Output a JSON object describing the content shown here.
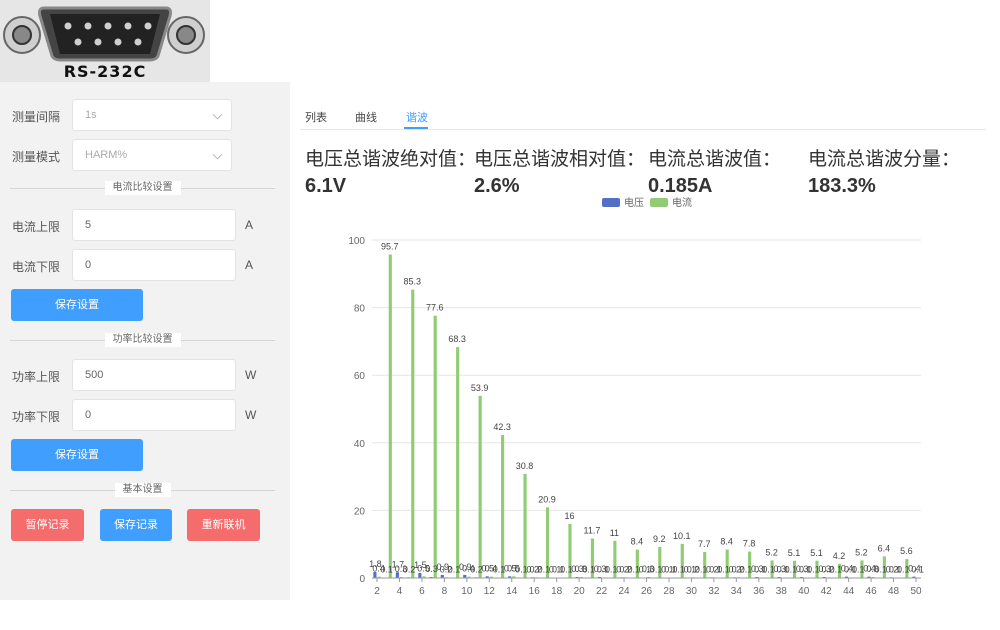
{
  "header": {
    "connector_label": "RS-232C"
  },
  "settings": {
    "interval": {
      "label": "测量间隔",
      "value": "1s"
    },
    "mode": {
      "label": "测量模式",
      "value": "HARM%"
    },
    "current_section_title": "电流比较设置",
    "current_upper": {
      "label": "电流上限",
      "value": "5",
      "unit": "A"
    },
    "current_lower": {
      "label": "电流下限",
      "value": "0",
      "unit": "A"
    },
    "save_label_1": "保存设置",
    "power_section_title": "功率比较设置",
    "power_upper": {
      "label": "功率上限",
      "value": "500",
      "unit": "W"
    },
    "power_lower": {
      "label": "功率下限",
      "value": "0",
      "unit": "W"
    },
    "save_label_2": "保存设置",
    "basic_section_title": "基本设置",
    "pause_label": "暂停记录",
    "save_record_label": "保存记录",
    "reconnect_label": "重新联机"
  },
  "tabs": [
    {
      "label": "列表"
    },
    {
      "label": "曲线"
    },
    {
      "label": "谐波"
    }
  ],
  "active_tab": 2,
  "stats": [
    {
      "label": "电压总谐波绝对值：",
      "value": "6.1V"
    },
    {
      "label": "电压总谐波相对值：",
      "value": "2.6%"
    },
    {
      "label": "电流总谐波值：",
      "value": "0.185A"
    },
    {
      "label": "电流总谐波分量：",
      "value": "183.3%"
    }
  ],
  "colors": {
    "voltage": "#5470c6",
    "current": "#91cc75",
    "accent": "#409eff",
    "danger": "#f56c6c"
  },
  "chart_data": {
    "type": "bar",
    "legend": [
      "电压",
      "电流"
    ],
    "ylim": [
      0,
      100
    ],
    "yticks": [
      0,
      20,
      40,
      60,
      80,
      100
    ],
    "x": [
      2,
      3,
      4,
      5,
      6,
      7,
      8,
      9,
      10,
      11,
      12,
      13,
      14,
      15,
      16,
      17,
      18,
      19,
      20,
      21,
      22,
      23,
      24,
      25,
      26,
      27,
      28,
      29,
      30,
      31,
      32,
      33,
      34,
      35,
      36,
      37,
      38,
      39,
      40,
      41,
      42,
      43,
      44,
      45,
      46,
      47,
      48,
      49,
      50
    ],
    "x_tick_labels": [
      "2",
      "4",
      "6",
      "8",
      "10",
      "12",
      "14",
      "16",
      "18",
      "20",
      "22",
      "24",
      "26",
      "28",
      "30",
      "32",
      "34",
      "36",
      "38",
      "40",
      "42",
      "44",
      "46",
      "48",
      "50"
    ],
    "series": [
      {
        "name": "电压",
        "values": [
          1.8,
          0.1,
          1.7,
          0.2,
          1.5,
          0.3,
          0.9,
          0.1,
          0.9,
          0.2,
          0.5,
          0.1,
          0.5,
          0.1,
          0.2,
          0.1,
          0.1,
          0.1,
          0.3,
          0.1,
          0.3,
          0.1,
          0.2,
          0.1,
          0.1,
          0.1,
          0.1,
          0.1,
          0.1,
          0.1,
          0.2,
          0.1,
          0.2,
          0.1,
          0.3,
          0.1,
          0.3,
          0.1,
          0.3,
          0.1,
          0.3,
          0.1,
          0.4,
          0.1,
          0.4,
          0.1,
          0.2,
          0.1,
          0.4
        ]
      },
      {
        "name": "电流",
        "values": [
          0.4,
          95.7,
          0.3,
          85.3,
          0.5,
          77.6,
          0.2,
          68.3,
          0.4,
          53.9,
          0.4,
          42.3,
          0.5,
          30.8,
          0.2,
          20.9,
          0.1,
          16,
          0.3,
          11.7,
          0.1,
          11,
          0.2,
          8.4,
          0.3,
          9.2,
          0.1,
          10.1,
          0.2,
          7.7,
          0.1,
          8.4,
          0.2,
          7.8,
          0.1,
          5.2,
          0.1,
          5.1,
          0.1,
          5.1,
          0.2,
          4.2,
          0.1,
          5.2,
          0.3,
          6.4,
          0.1,
          5.6,
          0.1
        ]
      }
    ],
    "value_labels": {
      "电压": [
        "1.8",
        "0.1",
        "1.7",
        "0.2",
        "1.5",
        "0.3",
        "0.9",
        "0.1",
        "0.9",
        "0.2",
        "0.5",
        "0.1",
        "0.5",
        "0.1",
        "0.2",
        "0.1",
        "0.1",
        "0.1",
        "0.3",
        "0.1",
        "0.3",
        "0.1",
        "0.2",
        "0.1",
        "0.1",
        "0.1",
        "0.1",
        "0.1",
        "0.1",
        "0.1",
        "0.2",
        "0.1",
        "0.2",
        "0.1",
        "0.3",
        "0.1",
        "0.3",
        "0.1",
        "0.3",
        "0.1",
        "0.3",
        "0.1",
        "0.4",
        "0.1",
        "0.4",
        "0.1",
        "0.2",
        "0.1",
        "0.4"
      ],
      "电流": [
        "0.4",
        "95.7",
        "0.3",
        "85.3",
        "0.5",
        "77.6",
        "0.2",
        "68.3",
        "0.4",
        "53.9",
        "0.4",
        "42.3",
        "0.5",
        "30.8",
        "0.2",
        "20.9",
        "0.1",
        "16",
        "0.3",
        "11.7",
        "0.1",
        "11",
        "0.2",
        "8.4",
        "0.3",
        "9.2",
        "0.1",
        "10.1",
        "0.2",
        "7.7",
        "0.1",
        "8.4",
        "0.2",
        "7.8",
        "0.1",
        "5.2",
        "0.1",
        "5.1",
        "0.1",
        "5.1",
        "0.2",
        "4.2",
        "0.1",
        "5.2",
        "0.3",
        "6.4",
        "0.1",
        "5.6",
        "0.1"
      ]
    },
    "grid": true,
    "legend_position": "top-center"
  }
}
